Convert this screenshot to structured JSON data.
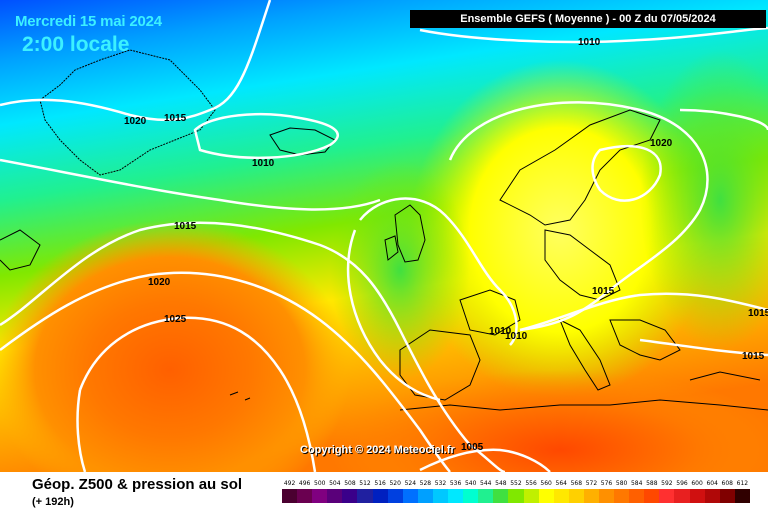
{
  "header": {
    "date": "Mercredi 15 mai 2024",
    "local_time": "2:00 locale",
    "run_info": "Ensemble GEFS  ( Moyenne )  -  00 Z du 07/05/2024"
  },
  "map": {
    "isobar_labels": [
      "1010",
      "1020",
      "1015",
      "1010",
      "1015",
      "1020",
      "1025",
      "1020",
      "1015",
      "1010",
      "1010",
      "1005",
      "1015",
      "1015",
      "1015"
    ],
    "copyright": "Copyright © 2024 Meteociel.fr"
  },
  "footer": {
    "variable": "Géop. Z500 & pression au sol",
    "horizon": "(+ 192h)"
  },
  "scale": {
    "values": [
      "492",
      "496",
      "500",
      "504",
      "508",
      "512",
      "516",
      "520",
      "524",
      "528",
      "532",
      "536",
      "540",
      "544",
      "548",
      "552",
      "556",
      "560",
      "564",
      "568",
      "572",
      "576",
      "580",
      "584",
      "588",
      "592",
      "596",
      "600",
      "604",
      "608",
      "612"
    ],
    "colors": [
      "#4b0030",
      "#6a0050",
      "#800080",
      "#5a007a",
      "#3a008a",
      "#2020a0",
      "#0020c0",
      "#0040e0",
      "#0070ff",
      "#00a0ff",
      "#00c8ff",
      "#00e8ff",
      "#00ffd0",
      "#20f090",
      "#40e040",
      "#80e800",
      "#c0f000",
      "#ffff00",
      "#ffe800",
      "#ffd000",
      "#ffb000",
      "#ff9000",
      "#ff7800",
      "#ff6000",
      "#ff4800",
      "#ff3030",
      "#e82020",
      "#d01010",
      "#b00808",
      "#800000",
      "#300000"
    ]
  }
}
